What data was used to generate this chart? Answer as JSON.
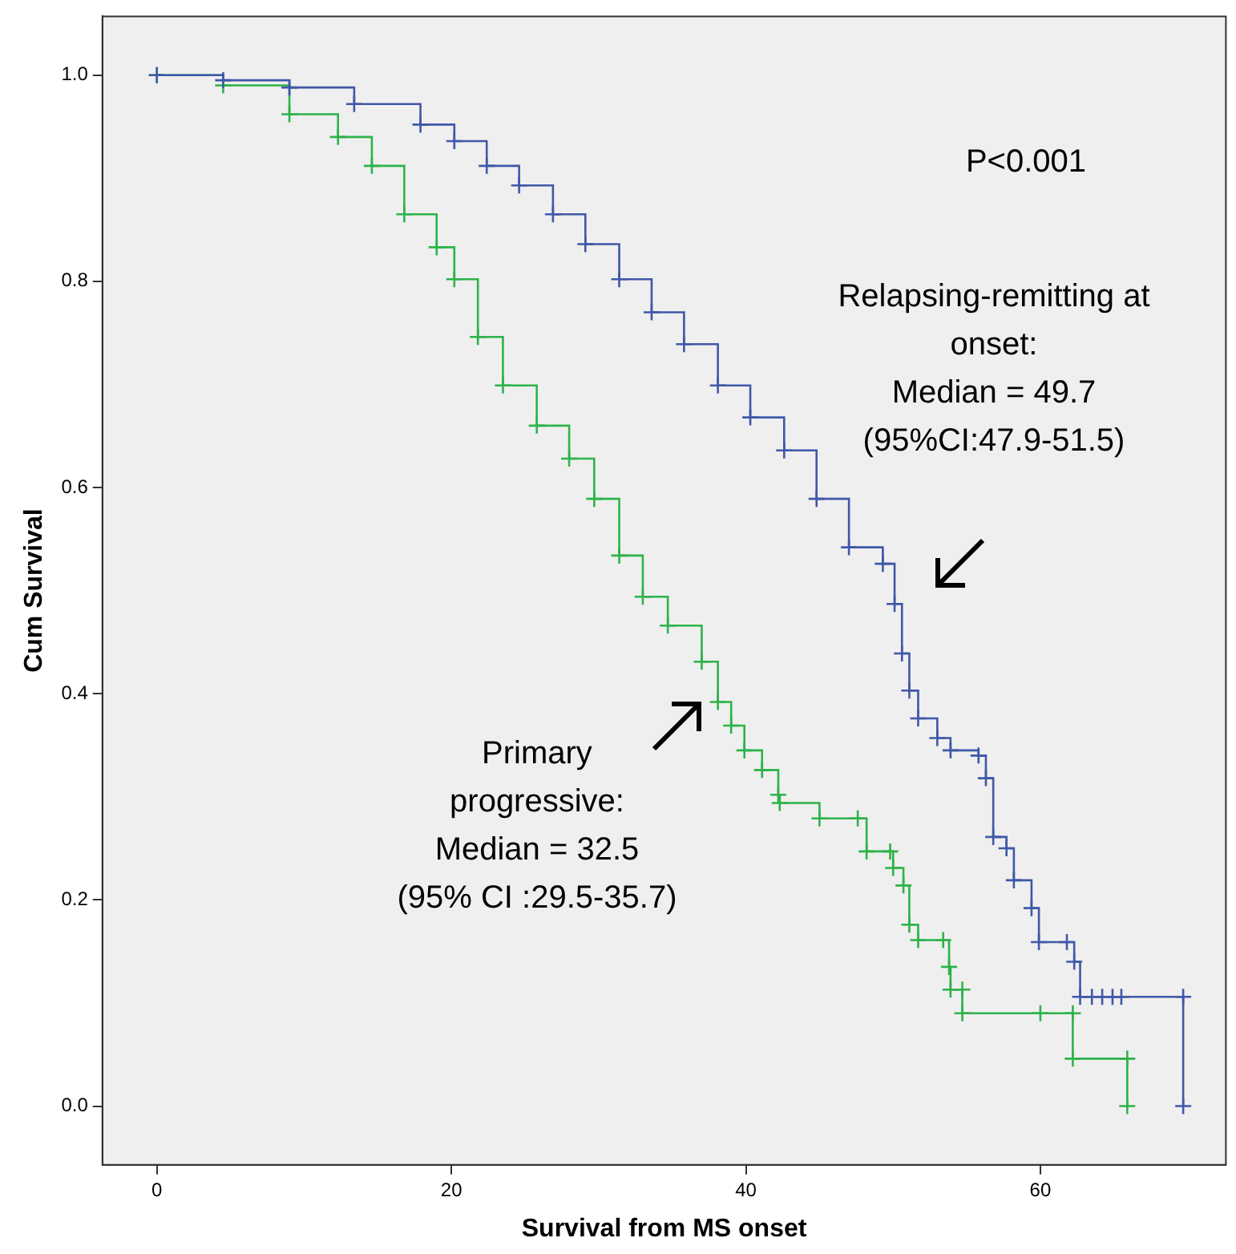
{
  "chart_data": {
    "type": "step",
    "xlabel": "Survival from MS onset",
    "ylabel": "Cum Survival",
    "xlim": [
      -3.7,
      72.6
    ],
    "ylim": [
      -0.057,
      1.057
    ],
    "xticks": [
      0,
      20,
      40,
      60
    ],
    "yticks": [
      {
        "value": 0,
        "label": "0.0"
      },
      {
        "value": 0.2,
        "label": "0.2"
      },
      {
        "value": 0.4,
        "label": "0.4"
      },
      {
        "value": 0.6,
        "label": "0.6"
      },
      {
        "value": 0.8,
        "label": "0.8"
      },
      {
        "value": 1,
        "label": "1.0"
      }
    ],
    "grid": false,
    "legend": false,
    "marker": "cross",
    "annotations": [
      "P<0.001",
      "Relapsing-remitting at\nonset:\nMedian = 49.7\n(95%CI:47.9-51.5)",
      "Primary\nprogressive:\nMedian = 32.5\n(95% CI :29.5-35.7)"
    ],
    "series": [
      {
        "color": "#3f58a8",
        "x": [
          0,
          4.5,
          9,
          13.4,
          17.9,
          20.2,
          22.4,
          24.6,
          26.9,
          29.1,
          31.4,
          33.6,
          35.8,
          38.1,
          40.3,
          42.6,
          44.8,
          47.0,
          49.3,
          50.1,
          50.6,
          51.1,
          51.7,
          53.0,
          53.9,
          55.8,
          56.3,
          56.8,
          57.7,
          58.2,
          59.4,
          59.9,
          61.8,
          62.3,
          62.7,
          63.5,
          64.2,
          64.9,
          65.5,
          69.7,
          69.7
        ],
        "values": [
          1.0,
          0.995,
          0.988,
          0.972,
          0.952,
          0.936,
          0.912,
          0.893,
          0.865,
          0.836,
          0.802,
          0.77,
          0.739,
          0.699,
          0.668,
          0.636,
          0.589,
          0.542,
          0.526,
          0.487,
          0.439,
          0.403,
          0.376,
          0.357,
          0.345,
          0.34,
          0.318,
          0.261,
          0.25,
          0.219,
          0.192,
          0.159,
          0.159,
          0.14,
          0.106,
          0.106,
          0.106,
          0.106,
          0.106,
          0.106,
          0.0
        ]
      },
      {
        "color": "#2db34a",
        "x": [
          0,
          4.5,
          9,
          12.3,
          14.6,
          16.8,
          19.0,
          20.2,
          21.8,
          23.5,
          25.8,
          28.0,
          29.7,
          31.4,
          33.0,
          34.7,
          37.0,
          38.1,
          39.0,
          39.9,
          41.1,
          42.2,
          42.3,
          45.0,
          47.6,
          48.2,
          49.8,
          50.0,
          50.7,
          51.1,
          51.7,
          53.4,
          53.8,
          53.9,
          54.7,
          54.7,
          60.0,
          62.2,
          62.2,
          65.9,
          65.9
        ],
        "values": [
          1.0,
          0.99,
          0.962,
          0.94,
          0.912,
          0.865,
          0.833,
          0.802,
          0.746,
          0.699,
          0.66,
          0.628,
          0.589,
          0.534,
          0.494,
          0.466,
          0.431,
          0.392,
          0.369,
          0.345,
          0.326,
          0.302,
          0.294,
          0.279,
          0.279,
          0.247,
          0.247,
          0.231,
          0.214,
          0.176,
          0.161,
          0.161,
          0.135,
          0.113,
          0.113,
          0.09,
          0.09,
          0.09,
          0.046,
          0.046,
          0.0
        ]
      }
    ]
  }
}
